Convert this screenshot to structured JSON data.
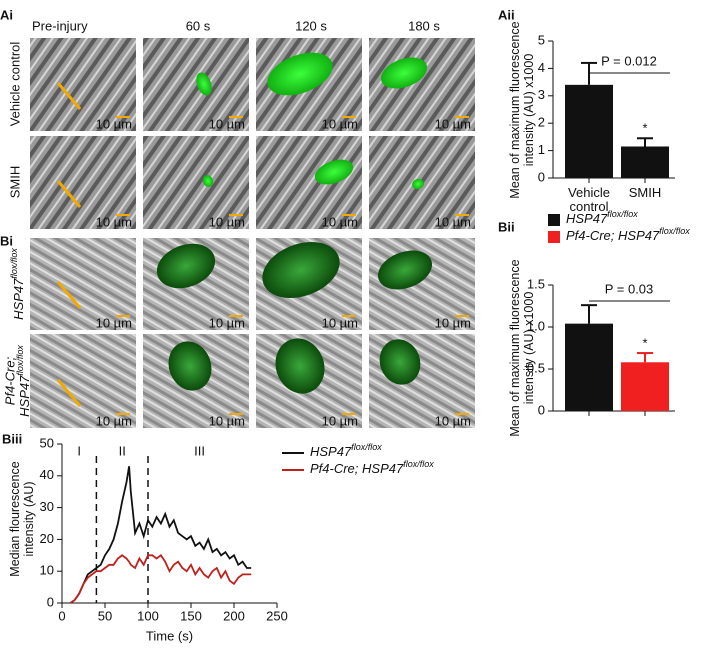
{
  "image_panels": {
    "Ai": {
      "label": "Ai",
      "columns": [
        "Pre-injury",
        "60 s",
        "120 s",
        "180 s"
      ],
      "rows": [
        "Vehicle control",
        "SMIH"
      ]
    },
    "Bi": {
      "label": "Bi",
      "rows": [
        {
          "text": "HSP47",
          "superscript": "flox/flox"
        },
        {
          "prefix": "Pf4-Cre;",
          "text": "HSP47",
          "superscript": "flox/flox"
        }
      ]
    },
    "scale_bar": "10 µm"
  },
  "chart_data": [
    {
      "type": "bar",
      "label": "Aii",
      "ylabel": "Mean of maximum fluorescence intensity (AU) x1000",
      "categories": [
        "Vehicle control",
        "SMIH"
      ],
      "values": [
        3.4,
        1.15
      ],
      "errors": [
        0.8,
        0.3
      ],
      "color": "#111111",
      "ylim": [
        0,
        5
      ],
      "yticks": [
        0,
        1,
        2,
        3,
        4,
        5
      ],
      "annotation": "P = 0.012",
      "significance": "*"
    },
    {
      "type": "bar",
      "label": "Bii",
      "ylabel": "Mean of maximum fluorescence intensity (AU) x1000",
      "categories": [
        null
      ],
      "series": [
        {
          "name": {
            "text": "HSP47",
            "superscript": "flox/flox"
          },
          "color": "#111111",
          "values": [
            1.04
          ],
          "errors": [
            0.22
          ]
        },
        {
          "name": {
            "text": "Pf4-Cre; HSP47",
            "superscript": "flox/flox"
          },
          "color": "#f02020",
          "values": [
            0.58
          ],
          "errors": [
            0.11
          ]
        }
      ],
      "ylim": [
        0,
        1.5
      ],
      "yticks": [
        0,
        0.5,
        {
          "value": 1,
          "label": "1.0"
        },
        1.5
      ],
      "annotation": "P = 0.03",
      "significance": "*"
    },
    {
      "type": "line",
      "label": "Biii",
      "xlabel": "Time (s)",
      "ylabel": "Median flourescence intensity (AU)",
      "x": [
        10,
        15,
        20,
        25,
        30,
        35,
        40,
        45,
        50,
        55,
        60,
        65,
        70,
        75,
        78,
        80,
        85,
        90,
        95,
        100,
        105,
        110,
        115,
        120,
        125,
        130,
        135,
        140,
        145,
        150,
        155,
        160,
        165,
        170,
        175,
        180,
        185,
        190,
        195,
        200,
        205,
        210,
        215,
        220
      ],
      "series": [
        {
          "name": {
            "text": "HSP47",
            "superscript": "flox/flox"
          },
          "color": "#111111",
          "values": [
            0,
            1,
            3,
            6,
            9,
            10,
            11,
            12,
            15,
            17,
            20,
            25,
            32,
            38,
            43,
            35,
            22,
            25,
            21,
            26,
            24,
            27,
            25,
            28,
            24,
            26,
            22,
            21,
            20,
            21,
            18,
            19,
            17,
            20,
            16,
            17,
            15,
            16,
            14,
            15,
            12,
            13,
            11,
            11
          ]
        },
        {
          "name": {
            "text": "Pf4-Cre; HSP47",
            "superscript": "flox/flox"
          },
          "color": "#c0201c",
          "values": [
            0,
            1,
            3,
            6,
            8,
            9,
            10,
            10,
            11,
            12,
            12,
            14,
            15,
            14,
            13,
            12,
            11,
            14,
            12,
            15,
            15,
            14,
            15,
            13,
            10,
            12,
            13,
            11,
            10,
            12,
            9,
            11,
            9,
            8,
            10,
            11,
            8,
            10,
            7,
            6,
            8,
            9,
            9,
            9
          ]
        }
      ],
      "phase_boundaries": [
        40,
        100
      ],
      "phase_labels": [
        "I",
        "II",
        "III"
      ],
      "xlim": [
        0,
        250
      ],
      "xticks": [
        0,
        50,
        100,
        150,
        200,
        250
      ],
      "ylim": [
        0,
        50
      ],
      "yticks": [
        0,
        10,
        20,
        30,
        40,
        50
      ]
    }
  ]
}
